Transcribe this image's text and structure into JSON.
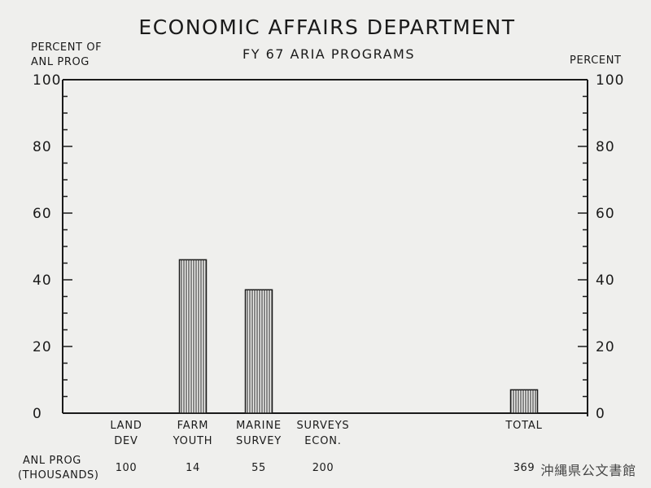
{
  "chart_data": {
    "type": "bar",
    "title": "ECONOMIC AFFAIRS DEPARTMENT",
    "subtitle": "FY 67 ARIA PROGRAMS",
    "ylabel_left": [
      "PERCENT OF",
      "ANL PROG"
    ],
    "ylabel_right": "PERCENT",
    "ylim": [
      0,
      100
    ],
    "yticks": [
      0,
      20,
      40,
      60,
      80,
      100
    ],
    "categories": [
      [
        "LAND",
        "DEV"
      ],
      [
        "FARM",
        "YOUTH"
      ],
      [
        "MARINE",
        "SURVEY"
      ],
      [
        "SURVEYS",
        "ECON."
      ],
      [
        "TOTAL"
      ]
    ],
    "values": [
      0,
      46,
      37,
      0,
      7
    ],
    "anl_prog_label": [
      "ANL PROG",
      "(THOUSANDS)"
    ],
    "anl_prog_values": [
      "100",
      "14",
      "55",
      "200",
      "369"
    ],
    "grid": false,
    "legend": "none"
  },
  "watermark": "沖縄県公文書館",
  "colors": {
    "background": "#efefed",
    "ink": "#1a1a1a"
  }
}
